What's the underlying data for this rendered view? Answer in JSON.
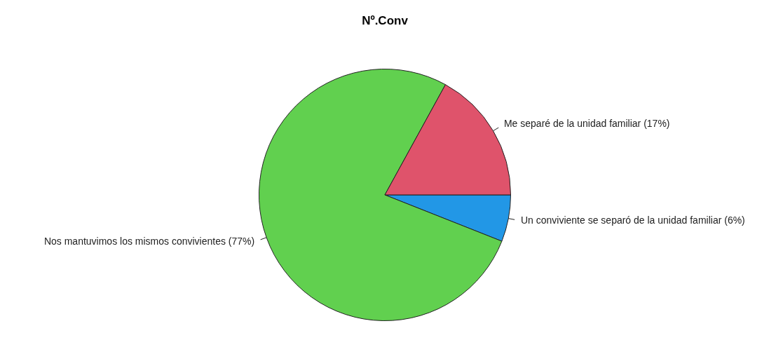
{
  "chart_data": {
    "type": "pie",
    "title": "Nº.Conv",
    "categories": [
      "Un conviviente se separó de la unidad familiar (6%)",
      "Nos mantuvimos los mismos convivientes (77%)",
      "Me separé de la unidad familiar (17%)"
    ],
    "values": [
      6,
      77,
      17
    ],
    "colors": [
      "#2297e6",
      "#61d04f",
      "#df536b"
    ],
    "legend": false
  }
}
